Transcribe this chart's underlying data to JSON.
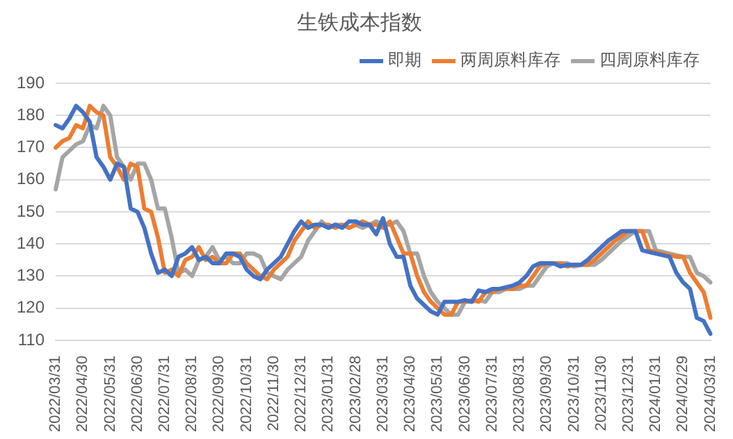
{
  "chart_data": {
    "type": "line",
    "title": "生铁成本指数",
    "categories": [
      "2022/03/31",
      null,
      null,
      null,
      "2022/04/30",
      null,
      null,
      null,
      "2022/05/31",
      null,
      null,
      null,
      "2022/06/30",
      null,
      null,
      null,
      "2022/07/31",
      null,
      null,
      null,
      "2022/08/31",
      null,
      null,
      null,
      "2022/09/30",
      null,
      null,
      null,
      "2022/10/31",
      null,
      null,
      null,
      "2022/11/30",
      null,
      null,
      null,
      "2022/12/31",
      null,
      null,
      null,
      "2023/01/31",
      null,
      null,
      null,
      "2023/02/28",
      null,
      null,
      null,
      "2023/03/31",
      null,
      null,
      null,
      "2023/04/30",
      null,
      null,
      null,
      "2023/05/31",
      null,
      null,
      null,
      "2023/06/30",
      null,
      null,
      null,
      "2023/07/31",
      null,
      null,
      null,
      "2023/08/31",
      null,
      null,
      null,
      "2023/09/30",
      null,
      null,
      null,
      "2023/10/31",
      null,
      null,
      null,
      "2023/11/30",
      null,
      null,
      null,
      "2023/12/31",
      null,
      null,
      null,
      "2024/01/31",
      null,
      null,
      null,
      "2024/02/29",
      null,
      null,
      null,
      "2024/03/31"
    ],
    "series": [
      {
        "name": "即期",
        "color": "#4472c4",
        "values": [
          177,
          176,
          179,
          183,
          181,
          178,
          167,
          164,
          160,
          165,
          164,
          151,
          150,
          145,
          137,
          131,
          132,
          130,
          136,
          137,
          139,
          135,
          136,
          134,
          134,
          137,
          137,
          136,
          132,
          130,
          129,
          132,
          134,
          136,
          140,
          144,
          147,
          145,
          146,
          146,
          145,
          146,
          145,
          147,
          147,
          146,
          146,
          143,
          148,
          140,
          136,
          136,
          127,
          123,
          121,
          119,
          118,
          122,
          122,
          122,
          122.5,
          122,
          125.5,
          125,
          126,
          126,
          126.5,
          127,
          128,
          130,
          133,
          134,
          134,
          134,
          133,
          133.5,
          133.5,
          133.5,
          135,
          137,
          139,
          141,
          142.5,
          144,
          144,
          144,
          138,
          137.5,
          137,
          136.5,
          136,
          131,
          128,
          126,
          117,
          116,
          112
        ]
      },
      {
        "name": "两周原料库存",
        "color": "#ed7d31",
        "values": [
          170,
          172,
          173,
          177,
          176,
          183,
          181,
          180,
          167,
          164,
          160,
          165,
          164,
          151,
          150,
          142,
          131,
          132,
          130,
          135,
          136,
          139,
          135,
          136,
          134,
          134,
          137,
          137,
          134,
          132,
          130,
          129,
          132,
          134,
          136,
          141,
          144,
          147,
          145,
          146,
          146,
          145,
          146,
          145,
          146,
          147,
          146,
          146,
          145,
          147,
          142,
          137,
          137,
          130,
          125,
          122,
          120,
          118,
          118,
          122,
          122,
          122.5,
          122,
          125,
          125,
          126,
          126,
          126,
          127,
          127,
          130,
          133,
          134,
          134,
          134,
          133,
          133.5,
          133.5,
          133.5,
          135,
          137,
          139,
          141,
          142.5,
          144,
          144,
          144,
          138,
          137.5,
          137,
          136.5,
          136,
          136,
          131,
          128,
          125,
          117
        ]
      },
      {
        "name": "四周原料库存",
        "color": "#a5a5a5",
        "values": [
          157,
          167,
          169,
          171,
          172,
          177,
          176,
          183,
          180,
          167,
          164,
          160,
          165,
          165,
          160,
          151,
          151,
          142,
          131,
          132,
          130,
          135,
          136,
          139,
          135,
          136,
          134,
          134,
          137,
          137,
          136,
          131,
          130,
          129,
          132,
          134,
          136,
          141,
          144,
          147,
          145,
          146,
          146,
          145,
          146,
          145,
          146,
          147,
          146,
          146,
          147,
          144,
          137,
          137,
          130,
          125,
          122,
          120,
          118,
          118,
          122,
          122,
          122.5,
          122,
          125,
          125,
          126,
          126,
          126,
          127,
          127,
          130,
          133,
          134,
          134,
          134,
          133,
          133.5,
          133.5,
          133.5,
          135,
          137,
          139,
          141,
          142.5,
          144,
          144,
          144,
          138,
          137.5,
          137,
          136.5,
          136,
          136,
          131,
          130,
          128
        ]
      }
    ],
    "ylim": [
      110,
      190
    ],
    "yticks": [
      110,
      120,
      130,
      140,
      150,
      160,
      170,
      180,
      190
    ],
    "grid": "y",
    "legend": "top right",
    "marker": "none",
    "line_style": "solid"
  }
}
